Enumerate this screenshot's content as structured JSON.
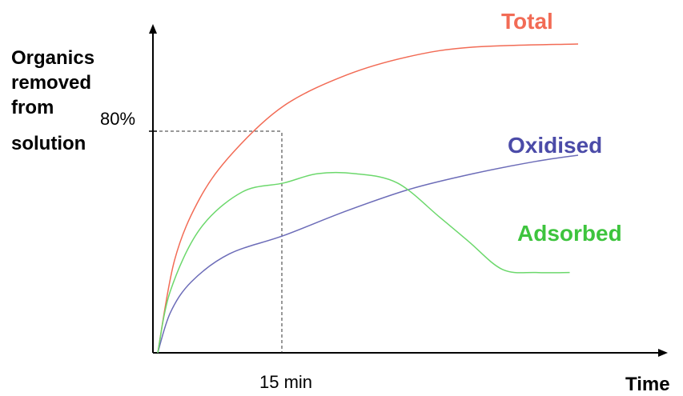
{
  "chart_data": {
    "type": "line",
    "title": "",
    "xlabel": "Time",
    "ylabel_lines": [
      "Organics",
      "removed",
      "from",
      "solution"
    ],
    "x_annotation": "15 min",
    "y_annotation": "80%",
    "series": [
      {
        "name": "Total",
        "color": "#f26b55",
        "values": [
          [
            0,
            0
          ],
          [
            0.04,
            0.3
          ],
          [
            0.1,
            0.5
          ],
          [
            0.18,
            0.65
          ],
          [
            0.3,
            0.8
          ],
          [
            0.45,
            0.9
          ],
          [
            0.6,
            0.96
          ],
          [
            0.75,
            0.99
          ],
          [
            1.0,
            1.0
          ]
        ]
      },
      {
        "name": "Oxidised",
        "color": "#6c6cb8",
        "values": [
          [
            0,
            0
          ],
          [
            0.03,
            0.13
          ],
          [
            0.08,
            0.23
          ],
          [
            0.17,
            0.32
          ],
          [
            0.3,
            0.38
          ],
          [
            0.45,
            0.46
          ],
          [
            0.6,
            0.53
          ],
          [
            0.75,
            0.58
          ],
          [
            0.9,
            0.62
          ],
          [
            1.0,
            0.64
          ]
        ]
      },
      {
        "name": "Adsorbed",
        "color": "#6cd86c",
        "values": [
          [
            0,
            0
          ],
          [
            0.03,
            0.2
          ],
          [
            0.1,
            0.4
          ],
          [
            0.2,
            0.52
          ],
          [
            0.3,
            0.55
          ],
          [
            0.38,
            0.58
          ],
          [
            0.47,
            0.58
          ],
          [
            0.57,
            0.55
          ],
          [
            0.67,
            0.44
          ],
          [
            0.74,
            0.36
          ],
          [
            0.82,
            0.27
          ],
          [
            0.9,
            0.26
          ],
          [
            0.98,
            0.26
          ]
        ]
      }
    ],
    "xlim": [
      0,
      1
    ],
    "ylim": [
      0,
      1
    ],
    "grid": false,
    "legend": "inline labels"
  }
}
